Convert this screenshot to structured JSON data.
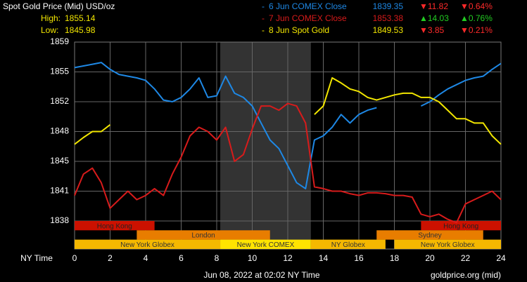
{
  "chart_data": {
    "type": "line",
    "title": "Spot Gold Price (Mid) USD/oz",
    "high_label": "High:",
    "high": "1855.14",
    "low_label": "Low:",
    "low": "1845.98",
    "x_label": "NY Time",
    "footer": "Jun 08, 2022 at 02:02 NY Time",
    "source": "goldprice.org (mid)",
    "xlim": [
      0,
      24
    ],
    "xticks": [
      0,
      2,
      4,
      6,
      8,
      10,
      12,
      14,
      16,
      18,
      20,
      22,
      24
    ],
    "ylim": [
      1838,
      1859
    ],
    "yticks": [
      1838,
      {
        "value": 1841.5,
        "label": "1841"
      },
      1845,
      {
        "value": 1848.5,
        "label": "1848"
      },
      1852,
      {
        "value": 1855.5,
        "label": "1855"
      },
      1859
    ],
    "grid": true,
    "highlight_range": [
      8.2,
      13.3
    ],
    "x": [
      0,
      0.5,
      1,
      1.5,
      2,
      2.5,
      3,
      3.5,
      4,
      4.5,
      5,
      5.5,
      6,
      6.5,
      7,
      7.5,
      8,
      8.5,
      9,
      9.5,
      10,
      10.5,
      11,
      11.5,
      12,
      12.5,
      13,
      13.5,
      14,
      14.5,
      15,
      15.5,
      16,
      16.5,
      17,
      17.5,
      18,
      18.5,
      19,
      19.5,
      20,
      20.5,
      21,
      21.5,
      22,
      22.5,
      23,
      23.5,
      24
    ],
    "series": [
      {
        "name": "6 Jun COMEX Close",
        "color": "#1e88e5",
        "close": "1839.35",
        "change": "▼11.82",
        "change_pct": "▼0.64%",
        "change_color": "#ff2a2a",
        "values": [
          1856.0,
          1856.2,
          1856.4,
          1856.6,
          1855.8,
          1855.2,
          1855.0,
          1854.8,
          1854.5,
          1853.5,
          1852.2,
          1852.0,
          1852.5,
          1853.5,
          1854.8,
          1852.5,
          1852.7,
          1855.0,
          1853.0,
          1852.5,
          1851.5,
          1849.5,
          1847.5,
          1846.5,
          1844.5,
          1842.5,
          1841.8,
          1847.5,
          1848.0,
          1849.0,
          1850.5,
          1849.5,
          1850.5,
          1851.0,
          1851.3,
          null,
          null,
          null,
          null,
          1851.5,
          1852.0,
          1852.8,
          1853.5,
          1854.0,
          1854.5,
          1854.8,
          1855.0,
          1855.8,
          1856.5
        ]
      },
      {
        "name": "7 Jun COMEX Close",
        "color": "#d81b1b",
        "close": "1853.38",
        "change": "▲14.03",
        "change_pct": "▲0.76%",
        "change_color": "#22cc22",
        "values": [
          1841.0,
          1843.5,
          1844.2,
          1842.5,
          1839.5,
          1840.5,
          1841.5,
          1840.5,
          1841.0,
          1841.8,
          1841.0,
          1843.5,
          1845.5,
          1848.0,
          1849.0,
          1848.5,
          1847.5,
          1849.0,
          1845.0,
          1845.8,
          1848.8,
          1851.5,
          1851.5,
          1851.0,
          1851.8,
          1851.5,
          1849.5,
          1842.0,
          1841.8,
          1841.5,
          1841.5,
          1841.2,
          1841.0,
          1841.3,
          1841.3,
          1841.2,
          1841.0,
          1841.0,
          1840.8,
          1838.8,
          1838.5,
          1838.8,
          1838.2,
          1837.8,
          1840.0,
          1840.5,
          1841.0,
          1841.5,
          1840.5
        ]
      },
      {
        "name": "8 Jun Spot Gold",
        "color": "#f2e600",
        "close": "1849.53",
        "change": "▼3.85",
        "change_pct": "▼0.21%",
        "change_color": "#ff2a2a",
        "values": [
          1847.0,
          1847.8,
          1848.5,
          1848.5,
          1849.3,
          null,
          null,
          null,
          null,
          null,
          null,
          null,
          null,
          null,
          null,
          null,
          null,
          null,
          null,
          null,
          null,
          null,
          null,
          null,
          null,
          null,
          null,
          1850.5,
          1851.5,
          1854.8,
          1854.2,
          1853.5,
          1853.2,
          1852.5,
          1852.2,
          1852.5,
          1852.8,
          1853.0,
          1853.0,
          1852.5,
          1852.5,
          1852.0,
          1851.0,
          1850.0,
          1850.0,
          1849.5,
          1849.5,
          1848.0,
          1847.0
        ]
      }
    ],
    "sessions": [
      {
        "name": "Hong Kong",
        "start": 0,
        "end": 4.5,
        "row": 0,
        "color": "#cc1100"
      },
      {
        "name": "Hong Kong",
        "start": 19.5,
        "end": 24,
        "row": 0,
        "color": "#cc1100"
      },
      {
        "name": "London",
        "start": 3.5,
        "end": 11,
        "row": 1,
        "color": "#e87d00"
      },
      {
        "name": "Sydney",
        "start": 17,
        "end": 23,
        "row": 1,
        "color": "#e87d00"
      },
      {
        "name": "New York Globex",
        "start": 0,
        "end": 8.2,
        "row": 2,
        "color": "#f5b800"
      },
      {
        "name": "New York COMEX",
        "start": 8.2,
        "end": 13.3,
        "row": 2,
        "color": "#ffe400"
      },
      {
        "name": "NY Globex",
        "start": 13.3,
        "end": 17.5,
        "row": 2,
        "color": "#f5b800"
      },
      {
        "name": "New York Globex",
        "start": 18,
        "end": 24,
        "row": 2,
        "color": "#f5b800"
      }
    ]
  }
}
